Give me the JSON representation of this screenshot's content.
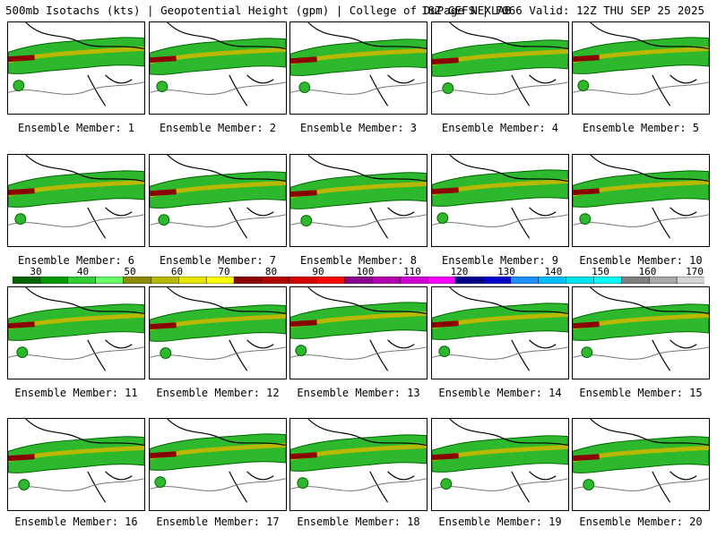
{
  "header": {
    "title_left": "500mb Isotachs (kts) | Geopotential Height (gpm) | College of DuPage NEXLAB",
    "title_right": "18Z GEFS | F066 Valid: 12Z THU SEP 25 2025"
  },
  "colorbar": {
    "ticks": [
      "30",
      "40",
      "50",
      "60",
      "70",
      "80",
      "90",
      "100",
      "110",
      "120",
      "130",
      "140",
      "150",
      "160",
      "170"
    ],
    "colors": [
      "#006400",
      "#009900",
      "#33cc33",
      "#66ff66",
      "#8b8b00",
      "#b8b800",
      "#e6e600",
      "#ffff00",
      "#8b0000",
      "#b30000",
      "#d40000",
      "#ff0000",
      "#8b008b",
      "#b000b0",
      "#d000d0",
      "#ff00ff",
      "#00008b",
      "#0000cd",
      "#1e90ff",
      "#00bfff",
      "#00e5ee",
      "#00ffff",
      "#808080",
      "#a9a9a9",
      "#d3d3d3"
    ]
  },
  "members": [
    "Ensemble Member: 1",
    "Ensemble Member: 2",
    "Ensemble Member: 3",
    "Ensemble Member: 4",
    "Ensemble Member: 5",
    "Ensemble Member: 6",
    "Ensemble Member: 7",
    "Ensemble Member: 8",
    "Ensemble Member: 9",
    "Ensemble Member: 10",
    "Ensemble Member: 11",
    "Ensemble Member: 12",
    "Ensemble Member: 13",
    "Ensemble Member: 14",
    "Ensemble Member: 15",
    "Ensemble Member: 16",
    "Ensemble Member: 17",
    "Ensemble Member: 18",
    "Ensemble Member: 19",
    "Ensemble Member: 20"
  ]
}
